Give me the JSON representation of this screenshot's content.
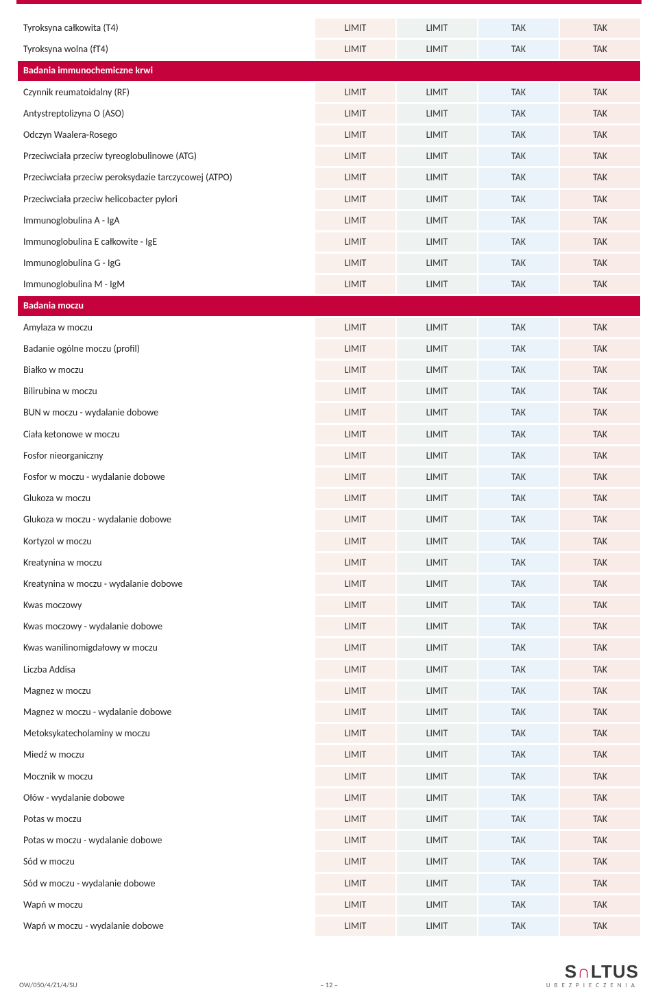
{
  "colors": {
    "accent": "#c5023c",
    "col1_bg": "#faf0eb",
    "col2_bg": "#eef2f0",
    "col3_bg": "#eaf3fa",
    "col4_bg": "#f9ece8",
    "text": "#333333",
    "white": "#ffffff"
  },
  "cell_values": {
    "limit": "LIMIT",
    "tak": "TAK"
  },
  "sections": [
    {
      "header": null,
      "rows": [
        {
          "name": "Tyroksyna całkowita (T4)",
          "c1": "LIMIT",
          "c2": "LIMIT",
          "c3": "TAK",
          "c4": "TAK"
        },
        {
          "name": "Tyroksyna wolna (fT4)",
          "c1": "LIMIT",
          "c2": "LIMIT",
          "c3": "TAK",
          "c4": "TAK"
        }
      ]
    },
    {
      "header": "Badania immunochemiczne krwi",
      "rows": [
        {
          "name": "Czynnik reumatoidalny (RF)",
          "c1": "LIMIT",
          "c2": "LIMIT",
          "c3": "TAK",
          "c4": "TAK"
        },
        {
          "name": "Antystreptolizyna O (ASO)",
          "c1": "LIMIT",
          "c2": "LIMIT",
          "c3": "TAK",
          "c4": "TAK"
        },
        {
          "name": "Odczyn Waalera-Rosego",
          "c1": "LIMIT",
          "c2": "LIMIT",
          "c3": "TAK",
          "c4": "TAK"
        },
        {
          "name": "Przeciwciała przeciw tyreoglobulinowe (ATG)",
          "c1": "LIMIT",
          "c2": "LIMIT",
          "c3": "TAK",
          "c4": "TAK"
        },
        {
          "name": "Przeciwciała przeciw peroksydazie tarczycowej (ATPO)",
          "c1": "LIMIT",
          "c2": "LIMIT",
          "c3": "TAK",
          "c4": "TAK"
        },
        {
          "name": "Przeciwciała przeciw helicobacter pylori",
          "c1": "LIMIT",
          "c2": "LIMIT",
          "c3": "TAK",
          "c4": "TAK"
        },
        {
          "name": "Immunoglobulina A - IgA",
          "c1": "LIMIT",
          "c2": "LIMIT",
          "c3": "TAK",
          "c4": "TAK"
        },
        {
          "name": "Immunoglobulina E całkowite - IgE",
          "c1": "LIMIT",
          "c2": "LIMIT",
          "c3": "TAK",
          "c4": "TAK"
        },
        {
          "name": "Immunoglobulina G - IgG",
          "c1": "LIMIT",
          "c2": "LIMIT",
          "c3": "TAK",
          "c4": "TAK"
        },
        {
          "name": "Immunoglobulina M - IgM",
          "c1": "LIMIT",
          "c2": "LIMIT",
          "c3": "TAK",
          "c4": "TAK"
        }
      ]
    },
    {
      "header": "Badania moczu",
      "rows": [
        {
          "name": "Amylaza w moczu",
          "c1": "LIMIT",
          "c2": "LIMIT",
          "c3": "TAK",
          "c4": "TAK"
        },
        {
          "name": "Badanie ogólne moczu (profil)",
          "c1": "LIMIT",
          "c2": "LIMIT",
          "c3": "TAK",
          "c4": "TAK"
        },
        {
          "name": "Białko w moczu",
          "c1": "LIMIT",
          "c2": "LIMIT",
          "c3": "TAK",
          "c4": "TAK"
        },
        {
          "name": "Bilirubina w moczu",
          "c1": "LIMIT",
          "c2": "LIMIT",
          "c3": "TAK",
          "c4": "TAK"
        },
        {
          "name": "BUN w moczu - wydalanie dobowe",
          "c1": "LIMIT",
          "c2": "LIMIT",
          "c3": "TAK",
          "c4": "TAK"
        },
        {
          "name": "Ciała ketonowe w moczu",
          "c1": "LIMIT",
          "c2": "LIMIT",
          "c3": "TAK",
          "c4": "TAK"
        },
        {
          "name": "Fosfor nieorganiczny",
          "c1": "LIMIT",
          "c2": "LIMIT",
          "c3": "TAK",
          "c4": "TAK"
        },
        {
          "name": "Fosfor w moczu - wydalanie dobowe",
          "c1": "LIMIT",
          "c2": "LIMIT",
          "c3": "TAK",
          "c4": "TAK"
        },
        {
          "name": "Glukoza w moczu",
          "c1": "LIMIT",
          "c2": "LIMIT",
          "c3": "TAK",
          "c4": "TAK"
        },
        {
          "name": "Glukoza w moczu - wydalanie dobowe",
          "c1": "LIMIT",
          "c2": "LIMIT",
          "c3": "TAK",
          "c4": "TAK"
        },
        {
          "name": "Kortyzol w moczu",
          "c1": "LIMIT",
          "c2": "LIMIT",
          "c3": "TAK",
          "c4": "TAK"
        },
        {
          "name": "Kreatynina w moczu",
          "c1": "LIMIT",
          "c2": "LIMIT",
          "c3": "TAK",
          "c4": "TAK"
        },
        {
          "name": "Kreatynina w moczu - wydalanie dobowe",
          "c1": "LIMIT",
          "c2": "LIMIT",
          "c3": "TAK",
          "c4": "TAK"
        },
        {
          "name": "Kwas moczowy",
          "c1": "LIMIT",
          "c2": "LIMIT",
          "c3": "TAK",
          "c4": "TAK"
        },
        {
          "name": "Kwas moczowy - wydalanie dobowe",
          "c1": "LIMIT",
          "c2": "LIMIT",
          "c3": "TAK",
          "c4": "TAK"
        },
        {
          "name": "Kwas wanilinomigdałowy w moczu",
          "c1": "LIMIT",
          "c2": "LIMIT",
          "c3": "TAK",
          "c4": "TAK"
        },
        {
          "name": "Liczba Addisa",
          "c1": "LIMIT",
          "c2": "LIMIT",
          "c3": "TAK",
          "c4": "TAK"
        },
        {
          "name": "Magnez w moczu",
          "c1": "LIMIT",
          "c2": "LIMIT",
          "c3": "TAK",
          "c4": "TAK"
        },
        {
          "name": "Magnez w moczu - wydalanie dobowe",
          "c1": "LIMIT",
          "c2": "LIMIT",
          "c3": "TAK",
          "c4": "TAK"
        },
        {
          "name": "Metoksykatecholaminy w moczu",
          "c1": "LIMIT",
          "c2": "LIMIT",
          "c3": "TAK",
          "c4": "TAK"
        },
        {
          "name": "Miedź w moczu",
          "c1": "LIMIT",
          "c2": "LIMIT",
          "c3": "TAK",
          "c4": "TAK"
        },
        {
          "name": "Mocznik w moczu",
          "c1": "LIMIT",
          "c2": "LIMIT",
          "c3": "TAK",
          "c4": "TAK"
        },
        {
          "name": "Ołów - wydalanie dobowe",
          "c1": "LIMIT",
          "c2": "LIMIT",
          "c3": "TAK",
          "c4": "TAK"
        },
        {
          "name": "Potas w moczu",
          "c1": "LIMIT",
          "c2": "LIMIT",
          "c3": "TAK",
          "c4": "TAK"
        },
        {
          "name": "Potas w moczu - wydalanie dobowe",
          "c1": "LIMIT",
          "c2": "LIMIT",
          "c3": "TAK",
          "c4": "TAK"
        },
        {
          "name": "Sód w moczu",
          "c1": "LIMIT",
          "c2": "LIMIT",
          "c3": "TAK",
          "c4": "TAK"
        },
        {
          "name": "Sód w moczu - wydalanie dobowe",
          "c1": "LIMIT",
          "c2": "LIMIT",
          "c3": "TAK",
          "c4": "TAK"
        },
        {
          "name": "Wapń w moczu",
          "c1": "LIMIT",
          "c2": "LIMIT",
          "c3": "TAK",
          "c4": "TAK"
        },
        {
          "name": "Wapń w moczu - wydalanie dobowe",
          "c1": "LIMIT",
          "c2": "LIMIT",
          "c3": "TAK",
          "c4": "TAK"
        }
      ]
    }
  ],
  "footer": {
    "doc_code": "OW/050/4/Z1/4/SU",
    "page": "– 12 –",
    "logo_main_1": "S",
    "logo_main_2": "∩",
    "logo_main_3": "LTUS",
    "logo_sub": "UBEZPIECZENIA"
  }
}
